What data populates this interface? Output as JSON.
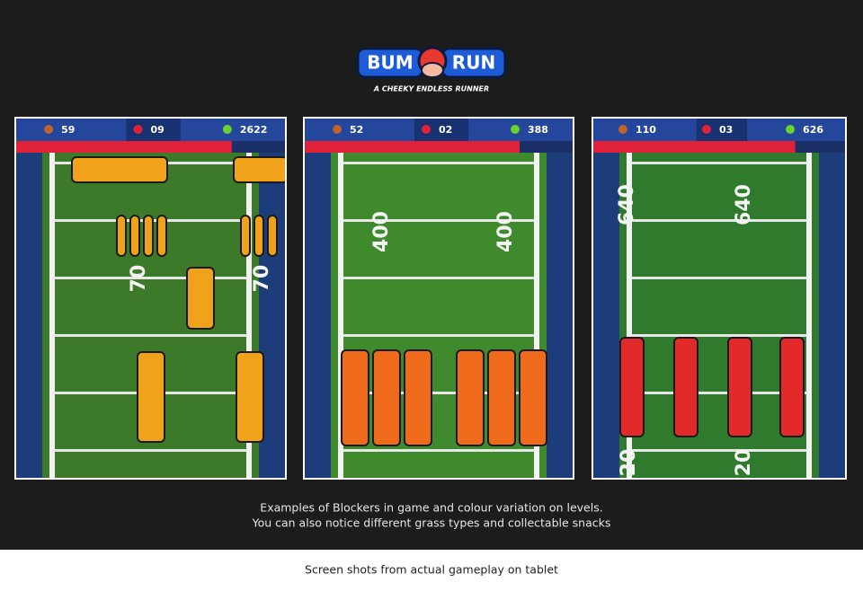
{
  "header": {
    "logo": [
      "BUM",
      "RUN"
    ],
    "tagline": "A CHEEKY ENDLESS RUNNER"
  },
  "screens": [
    {
      "hud": [
        "59",
        "09",
        "2622"
      ],
      "yard_numbers": [
        "70",
        "70"
      ]
    },
    {
      "hud": [
        "52",
        "02",
        "388"
      ],
      "yard_numbers": [
        "400",
        "400"
      ]
    },
    {
      "hud": [
        "110",
        "03",
        "626"
      ],
      "yard_numbers": [
        "640",
        "640",
        "20",
        "20"
      ]
    }
  ],
  "caption": [
    "Examples of Blockers in game and colour variation on levels.",
    "You can also notice different grass types and collectable snacks"
  ],
  "footer": "Screen shots from actual gameplay on tablet"
}
